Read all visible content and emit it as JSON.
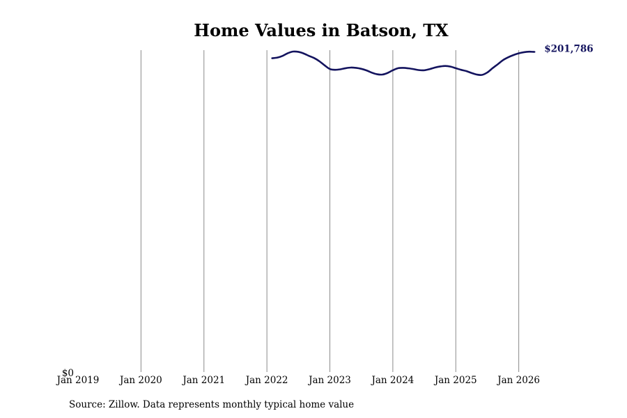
{
  "chart_data": {
    "type": "line",
    "title": "Home Values in Batson, TX",
    "xlabel": "",
    "ylabel": "",
    "x_ticks": [
      "Jan 2019",
      "Jan 2020",
      "Jan 2021",
      "Jan 2022",
      "Jan 2023",
      "Jan 2024",
      "Jan 2025",
      "Jan 2026"
    ],
    "y_ticks": [
      "$0"
    ],
    "xlim": [
      "2019-01",
      "2026-12"
    ],
    "ylim": [
      0,
      202000
    ],
    "grid": "vertical",
    "legend": "none",
    "series": [
      {
        "color": "#13135e",
        "end_label": "$201,786",
        "points": [
          [
            "2022-02",
            197800
          ],
          [
            "2022-03",
            198200
          ],
          [
            "2022-04",
            199300
          ],
          [
            "2022-05",
            201000
          ],
          [
            "2022-06",
            202000
          ],
          [
            "2022-07",
            201800
          ],
          [
            "2022-08",
            200800
          ],
          [
            "2022-09",
            199300
          ],
          [
            "2022-10",
            197900
          ],
          [
            "2022-11",
            195900
          ],
          [
            "2022-12",
            193300
          ],
          [
            "2023-01",
            191000
          ],
          [
            "2023-02",
            190500
          ],
          [
            "2023-03",
            190800
          ],
          [
            "2023-04",
            191500
          ],
          [
            "2023-05",
            191900
          ],
          [
            "2023-06",
            191700
          ],
          [
            "2023-07",
            191100
          ],
          [
            "2023-08",
            190100
          ],
          [
            "2023-09",
            188700
          ],
          [
            "2023-10",
            187700
          ],
          [
            "2023-11",
            187500
          ],
          [
            "2023-12",
            188500
          ],
          [
            "2024-01",
            190200
          ],
          [
            "2024-02",
            191500
          ],
          [
            "2024-03",
            191700
          ],
          [
            "2024-04",
            191400
          ],
          [
            "2024-05",
            190900
          ],
          [
            "2024-06",
            190300
          ],
          [
            "2024-07",
            190200
          ],
          [
            "2024-08",
            190900
          ],
          [
            "2024-09",
            191900
          ],
          [
            "2024-10",
            192600
          ],
          [
            "2024-11",
            192900
          ],
          [
            "2024-12",
            192500
          ],
          [
            "2025-01",
            191500
          ],
          [
            "2025-02",
            190500
          ],
          [
            "2025-03",
            189700
          ],
          [
            "2025-04",
            188500
          ],
          [
            "2025-05",
            187500
          ],
          [
            "2025-06",
            187300
          ],
          [
            "2025-07",
            188800
          ],
          [
            "2025-08",
            191500
          ],
          [
            "2025-09",
            194000
          ],
          [
            "2025-10",
            196600
          ],
          [
            "2025-11",
            198400
          ],
          [
            "2025-12",
            199800
          ],
          [
            "2026-01",
            200900
          ],
          [
            "2026-02",
            201600
          ],
          [
            "2026-03",
            201900
          ],
          [
            "2026-04",
            201786
          ]
        ]
      }
    ]
  },
  "source_text": "Source: Zillow. Data represents monthly typical home value"
}
